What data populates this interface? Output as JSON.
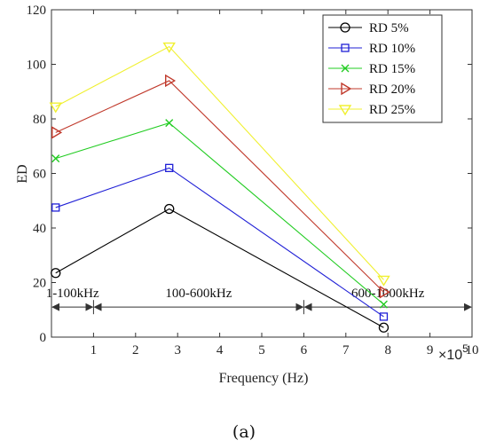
{
  "chart_data": {
    "type": "line",
    "xlabel": "Frequency (Hz)",
    "ylabel": "ED",
    "x_multiplier_label": "×10",
    "x_multiplier_exponent": "5",
    "xlim": [
      0,
      10
    ],
    "ylim": [
      0,
      120
    ],
    "xticks": [
      "1",
      "2",
      "3",
      "4",
      "5",
      "6",
      "7",
      "8",
      "9",
      "10"
    ],
    "yticks": [
      "0",
      "20",
      "40",
      "60",
      "80",
      "100",
      "120"
    ],
    "x": [
      0.1,
      2.8,
      7.9
    ],
    "series": [
      {
        "name": "RD  5%",
        "values": [
          23.5,
          47,
          3.5
        ],
        "color": "#000000",
        "marker": "circle"
      },
      {
        "name": "RD  10%",
        "values": [
          47.5,
          62,
          7.5
        ],
        "color": "#1f1fd6",
        "marker": "square"
      },
      {
        "name": "RD  15%",
        "values": [
          65.5,
          78.5,
          12
        ],
        "color": "#22cc22",
        "marker": "x"
      },
      {
        "name": "RD  20%",
        "values": [
          75,
          94,
          16.5
        ],
        "color": "#c0392b",
        "marker": "triangle-right"
      },
      {
        "name": "RD  25%",
        "values": [
          84.5,
          106.5,
          21
        ],
        "color": "#f0f030",
        "marker": "triangle-down"
      }
    ],
    "legend_position": "top-right",
    "frequency_bands": [
      {
        "label": "1-100kHz",
        "from": 0,
        "to": 1
      },
      {
        "label": "100-600kHz",
        "from": 1,
        "to": 6
      },
      {
        "label": "600-1000kHz",
        "from": 6,
        "to": 10
      }
    ],
    "band_arrow_y": 11
  },
  "panel_label": "(a)"
}
